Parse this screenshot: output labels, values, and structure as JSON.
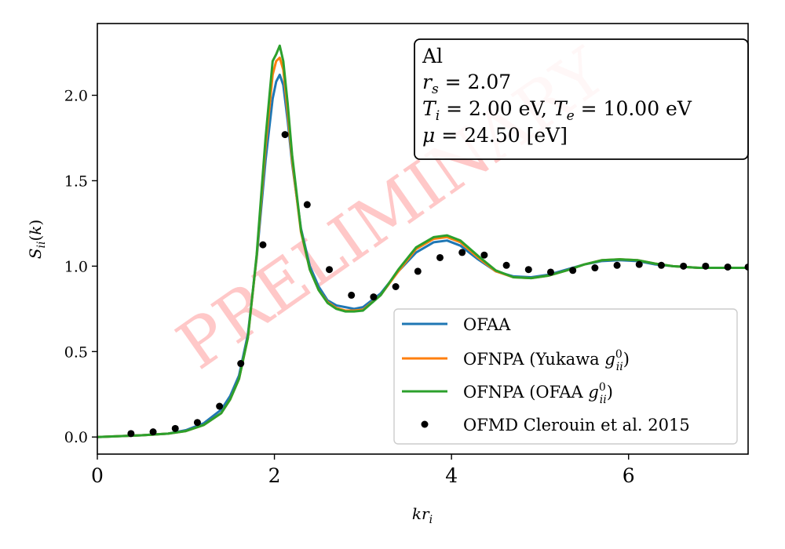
{
  "chart_data": {
    "type": "line",
    "xlabel": "kr_i",
    "ylabel": "S_ii(k)",
    "xlim": [
      0,
      7.35
    ],
    "ylim": [
      -0.1,
      2.42
    ],
    "xticks": [
      0,
      2,
      4,
      6
    ],
    "yticks": [
      0.0,
      0.5,
      1.0,
      1.5,
      2.0
    ],
    "xtick_labels": [
      "0",
      "2",
      "4",
      "6"
    ],
    "ytick_labels": [
      "0.0",
      "0.5",
      "1.0",
      "1.5",
      "2.0"
    ],
    "grid": false,
    "legend_position": "lower-right",
    "watermark": "PRELIMINARY",
    "annotation": {
      "lines": [
        "Al",
        "r_s = 2.07",
        "T_i = 2.00 eV, T_e = 10.00 eV",
        "μ = 24.50 [eV]"
      ]
    },
    "series": [
      {
        "name": "OFAA",
        "color": "#1f77b4",
        "style": "line",
        "x": [
          0,
          0.5,
          0.8,
          1.0,
          1.2,
          1.4,
          1.5,
          1.6,
          1.7,
          1.8,
          1.9,
          1.98,
          2.02,
          2.06,
          2.1,
          2.15,
          2.2,
          2.3,
          2.4,
          2.5,
          2.6,
          2.7,
          2.8,
          2.9,
          3.0,
          3.2,
          3.4,
          3.6,
          3.8,
          3.95,
          4.1,
          4.3,
          4.5,
          4.7,
          4.9,
          5.1,
          5.3,
          5.5,
          5.7,
          5.9,
          6.1,
          6.3,
          6.5,
          6.8,
          7.1,
          7.35
        ],
        "y": [
          0.0,
          0.01,
          0.02,
          0.04,
          0.08,
          0.16,
          0.24,
          0.36,
          0.6,
          1.05,
          1.62,
          1.98,
          2.08,
          2.12,
          2.06,
          1.85,
          1.6,
          1.22,
          1.0,
          0.88,
          0.8,
          0.77,
          0.76,
          0.75,
          0.76,
          0.84,
          0.97,
          1.08,
          1.14,
          1.15,
          1.12,
          1.04,
          0.97,
          0.94,
          0.935,
          0.95,
          0.98,
          1.01,
          1.03,
          1.035,
          1.03,
          1.01,
          1.0,
          0.99,
          0.99,
          0.99
        ]
      },
      {
        "name": "OFNPA (Yukawa g^0_ii)",
        "color": "#ff7f0e",
        "style": "line",
        "x": [
          0,
          0.5,
          0.8,
          1.0,
          1.2,
          1.4,
          1.5,
          1.6,
          1.7,
          1.8,
          1.9,
          1.98,
          2.02,
          2.06,
          2.1,
          2.15,
          2.2,
          2.3,
          2.4,
          2.5,
          2.6,
          2.7,
          2.8,
          2.9,
          3.0,
          3.2,
          3.4,
          3.6,
          3.8,
          3.95,
          4.1,
          4.3,
          4.5,
          4.7,
          4.9,
          5.1,
          5.3,
          5.5,
          5.7,
          5.9,
          6.1,
          6.3,
          6.5,
          6.8,
          7.1,
          7.35
        ],
        "y": [
          0.0,
          0.01,
          0.02,
          0.035,
          0.07,
          0.14,
          0.22,
          0.34,
          0.58,
          1.06,
          1.7,
          2.12,
          2.2,
          2.22,
          2.15,
          1.9,
          1.62,
          1.2,
          0.98,
          0.86,
          0.79,
          0.755,
          0.74,
          0.74,
          0.745,
          0.83,
          0.97,
          1.1,
          1.16,
          1.17,
          1.14,
          1.05,
          0.97,
          0.935,
          0.93,
          0.945,
          0.975,
          1.01,
          1.035,
          1.04,
          1.035,
          1.015,
          1.0,
          0.99,
          0.99,
          0.99
        ]
      },
      {
        "name": "OFNPA (OFAA g^0_ii)",
        "color": "#2ca02c",
        "style": "line",
        "x": [
          0,
          0.5,
          0.8,
          1.0,
          1.2,
          1.4,
          1.5,
          1.6,
          1.7,
          1.8,
          1.9,
          1.98,
          2.02,
          2.06,
          2.1,
          2.15,
          2.2,
          2.3,
          2.4,
          2.5,
          2.6,
          2.7,
          2.8,
          2.9,
          3.0,
          3.2,
          3.4,
          3.6,
          3.8,
          3.95,
          4.1,
          4.3,
          4.5,
          4.7,
          4.9,
          5.1,
          5.3,
          5.5,
          5.7,
          5.9,
          6.1,
          6.3,
          6.5,
          6.8,
          7.1,
          7.35
        ],
        "y": [
          0.0,
          0.01,
          0.02,
          0.035,
          0.07,
          0.14,
          0.22,
          0.34,
          0.58,
          1.07,
          1.75,
          2.2,
          2.24,
          2.29,
          2.2,
          1.95,
          1.65,
          1.21,
          0.98,
          0.86,
          0.785,
          0.75,
          0.735,
          0.735,
          0.74,
          0.83,
          0.98,
          1.11,
          1.17,
          1.18,
          1.15,
          1.06,
          0.975,
          0.935,
          0.93,
          0.945,
          0.975,
          1.01,
          1.035,
          1.04,
          1.035,
          1.015,
          1.0,
          0.99,
          0.99,
          0.99
        ]
      },
      {
        "name": "OFMD Clerouin et al. 2015",
        "color": "#000000",
        "style": "points",
        "x": [
          0.38,
          0.63,
          0.88,
          1.13,
          1.38,
          1.62,
          1.87,
          2.12,
          2.37,
          2.62,
          2.87,
          3.12,
          3.37,
          3.62,
          3.87,
          4.12,
          4.37,
          4.62,
          4.87,
          5.12,
          5.37,
          5.62,
          5.87,
          6.12,
          6.37,
          6.62,
          6.87,
          7.12,
          7.35
        ],
        "y": [
          0.02,
          0.03,
          0.05,
          0.085,
          0.18,
          0.43,
          1.125,
          1.77,
          1.36,
          0.98,
          0.83,
          0.82,
          0.88,
          0.97,
          1.05,
          1.08,
          1.065,
          1.005,
          0.98,
          0.965,
          0.975,
          0.99,
          1.005,
          1.01,
          1.005,
          1.0,
          1.0,
          0.995,
          0.995
        ]
      }
    ]
  }
}
